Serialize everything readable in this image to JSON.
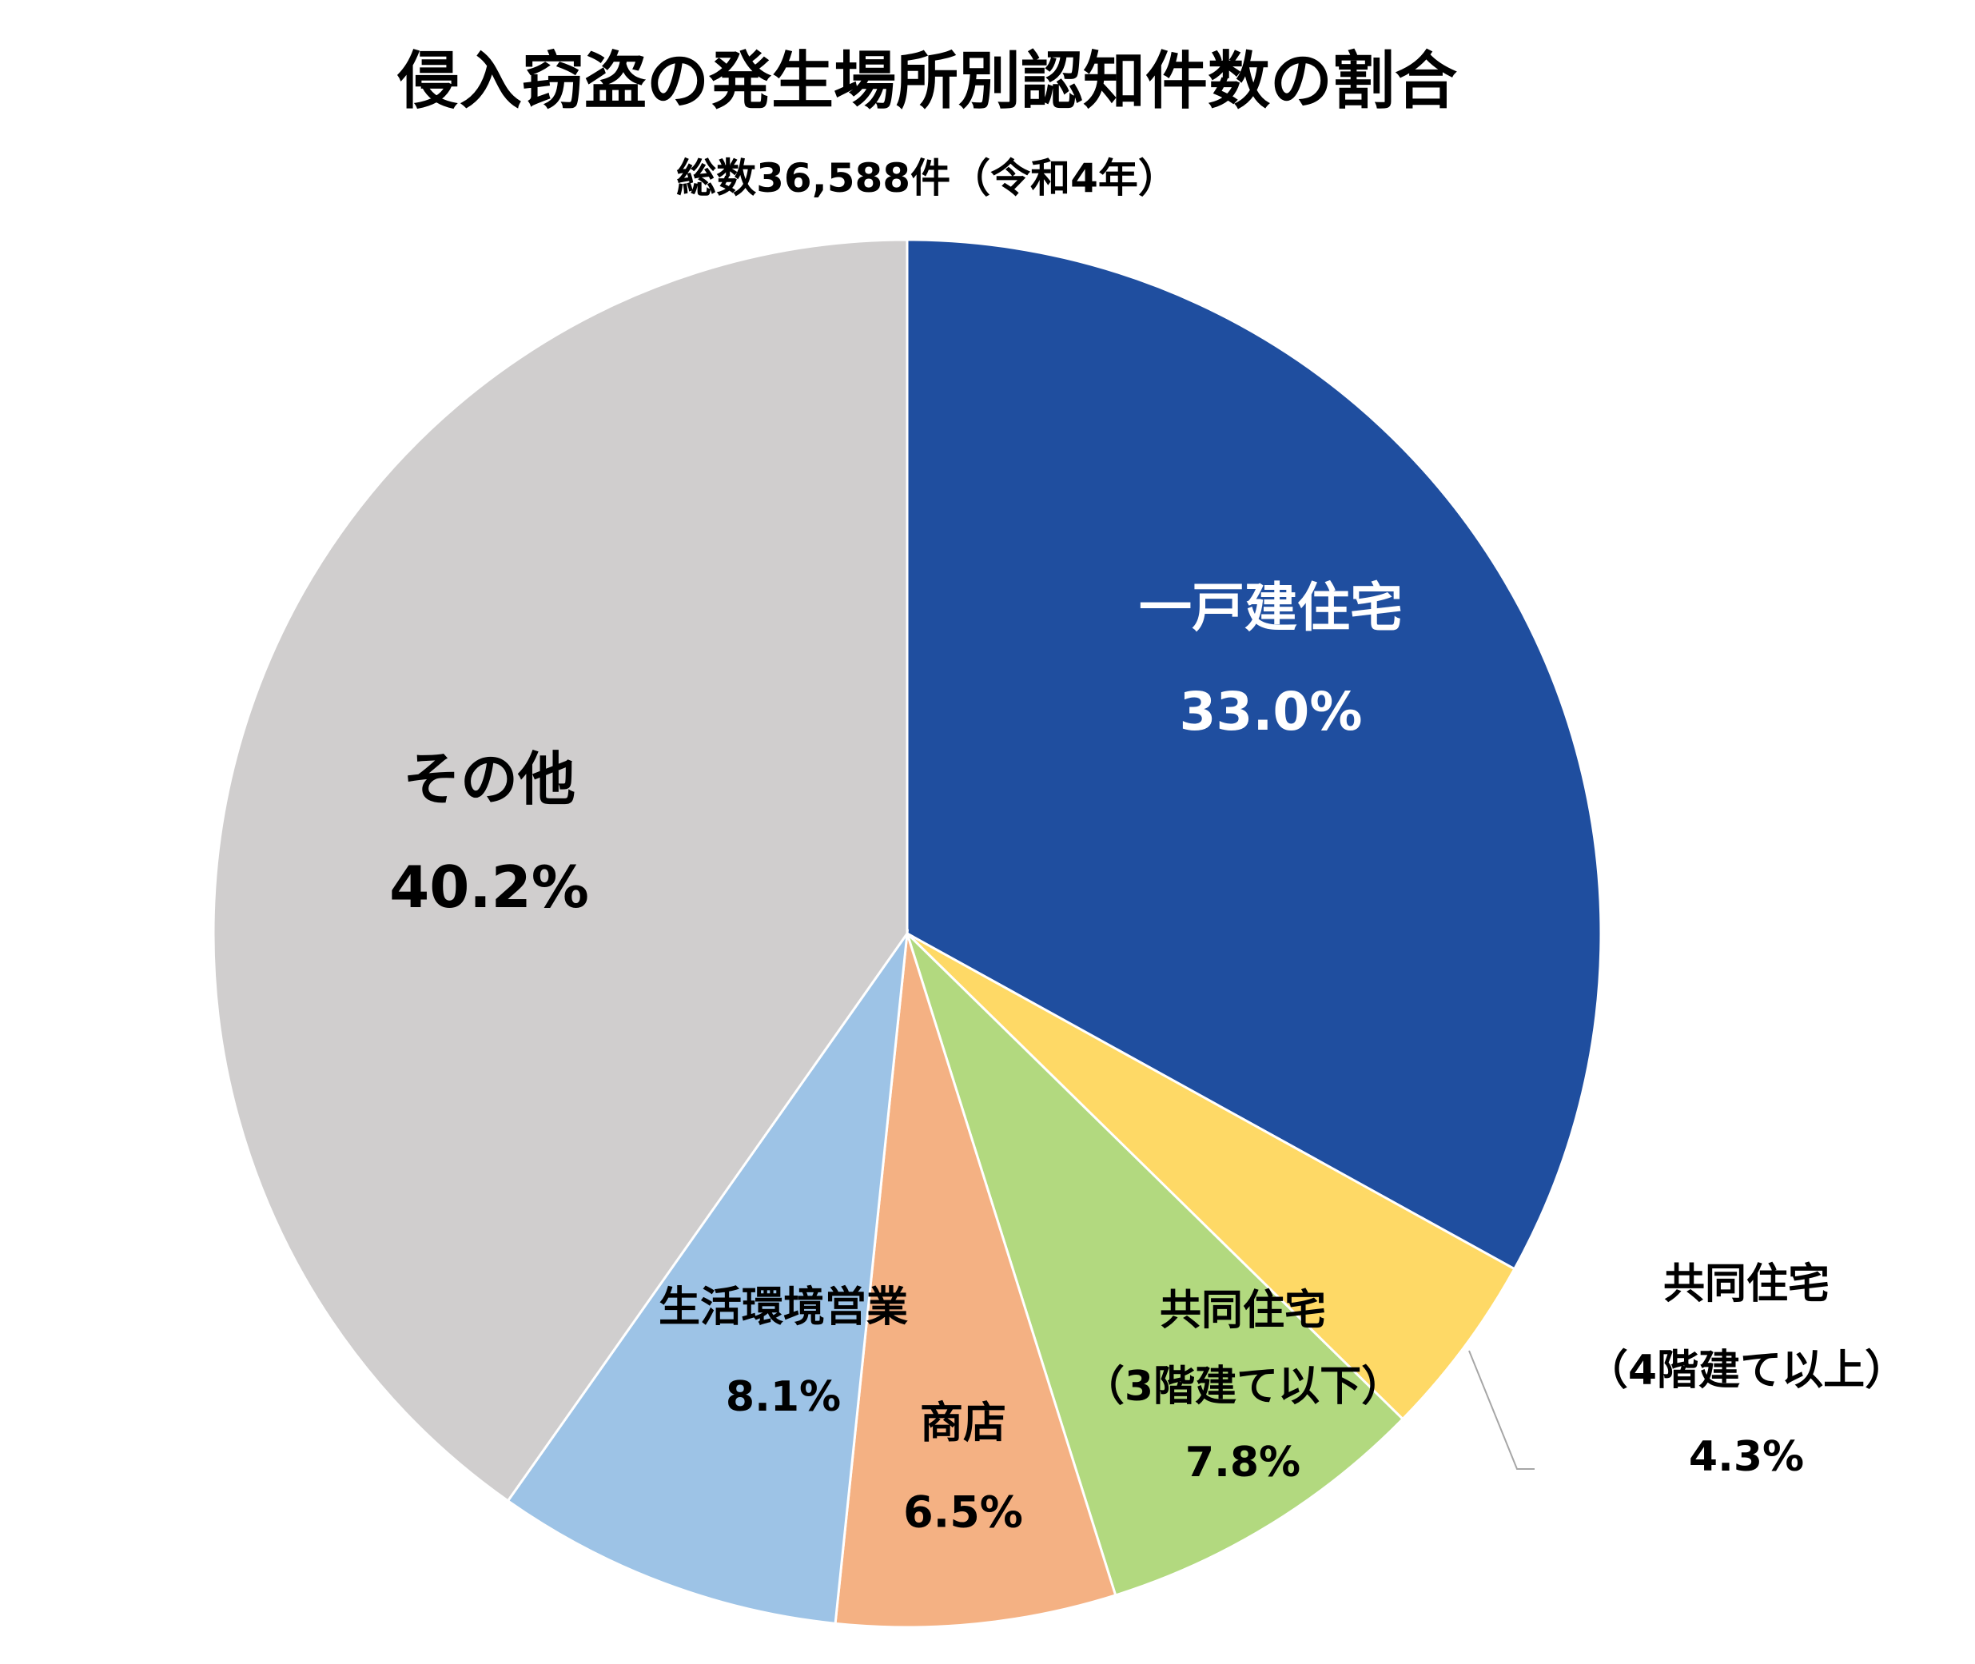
{
  "chart_data": {
    "type": "pie",
    "title": "侵入窃盗の発生場所別認知件数の割合",
    "subtitle": "総数36,588件（令和4年）",
    "start_angle_deg": 0,
    "direction": "clockwise",
    "slices": [
      {
        "label_lines": [
          "一戸建住宅"
        ],
        "value": 33.0,
        "value_label": "33.0%",
        "color": "#1f4e9f",
        "text_color": "#ffffff"
      },
      {
        "label_lines": [
          "共同住宅",
          "（4階建て以上）"
        ],
        "value": 4.3,
        "value_label": "4.3%",
        "color": "#fed966",
        "text_color": "#000000",
        "callout": true
      },
      {
        "label_lines": [
          "共同住宅",
          "（3階建て以下）"
        ],
        "value": 7.8,
        "value_label": "7.8%",
        "color": "#b2d97f",
        "text_color": "#000000"
      },
      {
        "label_lines": [
          "商店"
        ],
        "value": 6.5,
        "value_label": "6.5%",
        "color": "#f4b183",
        "text_color": "#000000"
      },
      {
        "label_lines": [
          "生活環境営業"
        ],
        "value": 8.1,
        "value_label": "8.1%",
        "color": "#9dc3e6",
        "text_color": "#000000"
      },
      {
        "label_lines": [
          "その他"
        ],
        "value": 40.2,
        "value_label": "40.2%",
        "color": "#d0cece",
        "text_color": "#000000"
      }
    ]
  }
}
